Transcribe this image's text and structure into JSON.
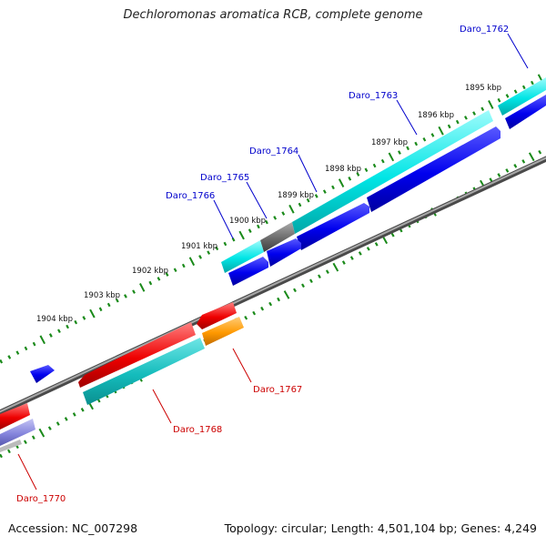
{
  "title": "Dechloromonas aromatica RCB, complete genome",
  "footer": {
    "accession": "Accession: NC_007298",
    "summary": "Topology: circular; Length: 4,501,104 bp; Genes: 4,249"
  },
  "colors": {
    "tick": "#1a8a1a",
    "backbone": "#7a7a7a",
    "label_forward": "#0000cc",
    "label_reverse": "#cc0000"
  },
  "scale": {
    "unit": "kbp",
    "labels": [
      "1895 kbp",
      "1896 kbp",
      "1897 kbp",
      "1898 kbp",
      "1899 kbp",
      "1900 kbp",
      "1901 kbp",
      "1902 kbp",
      "1903 kbp",
      "1904 kbp"
    ]
  },
  "genes": [
    {
      "name": "Daro_1762",
      "strand": "forward",
      "color": "#00cccc"
    },
    {
      "name": "Daro_1763",
      "strand": "forward",
      "color": "#00cccc"
    },
    {
      "name": "Daro_1764",
      "strand": "forward",
      "color": "#00cccc"
    },
    {
      "name": "Daro_1765",
      "strand": "forward",
      "color": "#666666"
    },
    {
      "name": "Daro_1766",
      "strand": "forward",
      "color": "#00cccc"
    },
    {
      "name": "Daro_1767",
      "strand": "reverse",
      "color": "#ff8800"
    },
    {
      "name": "Daro_1768",
      "strand": "reverse",
      "color": "#00b0b0"
    },
    {
      "name": "Daro_1770",
      "strand": "reverse",
      "color": "#7777dd"
    }
  ]
}
